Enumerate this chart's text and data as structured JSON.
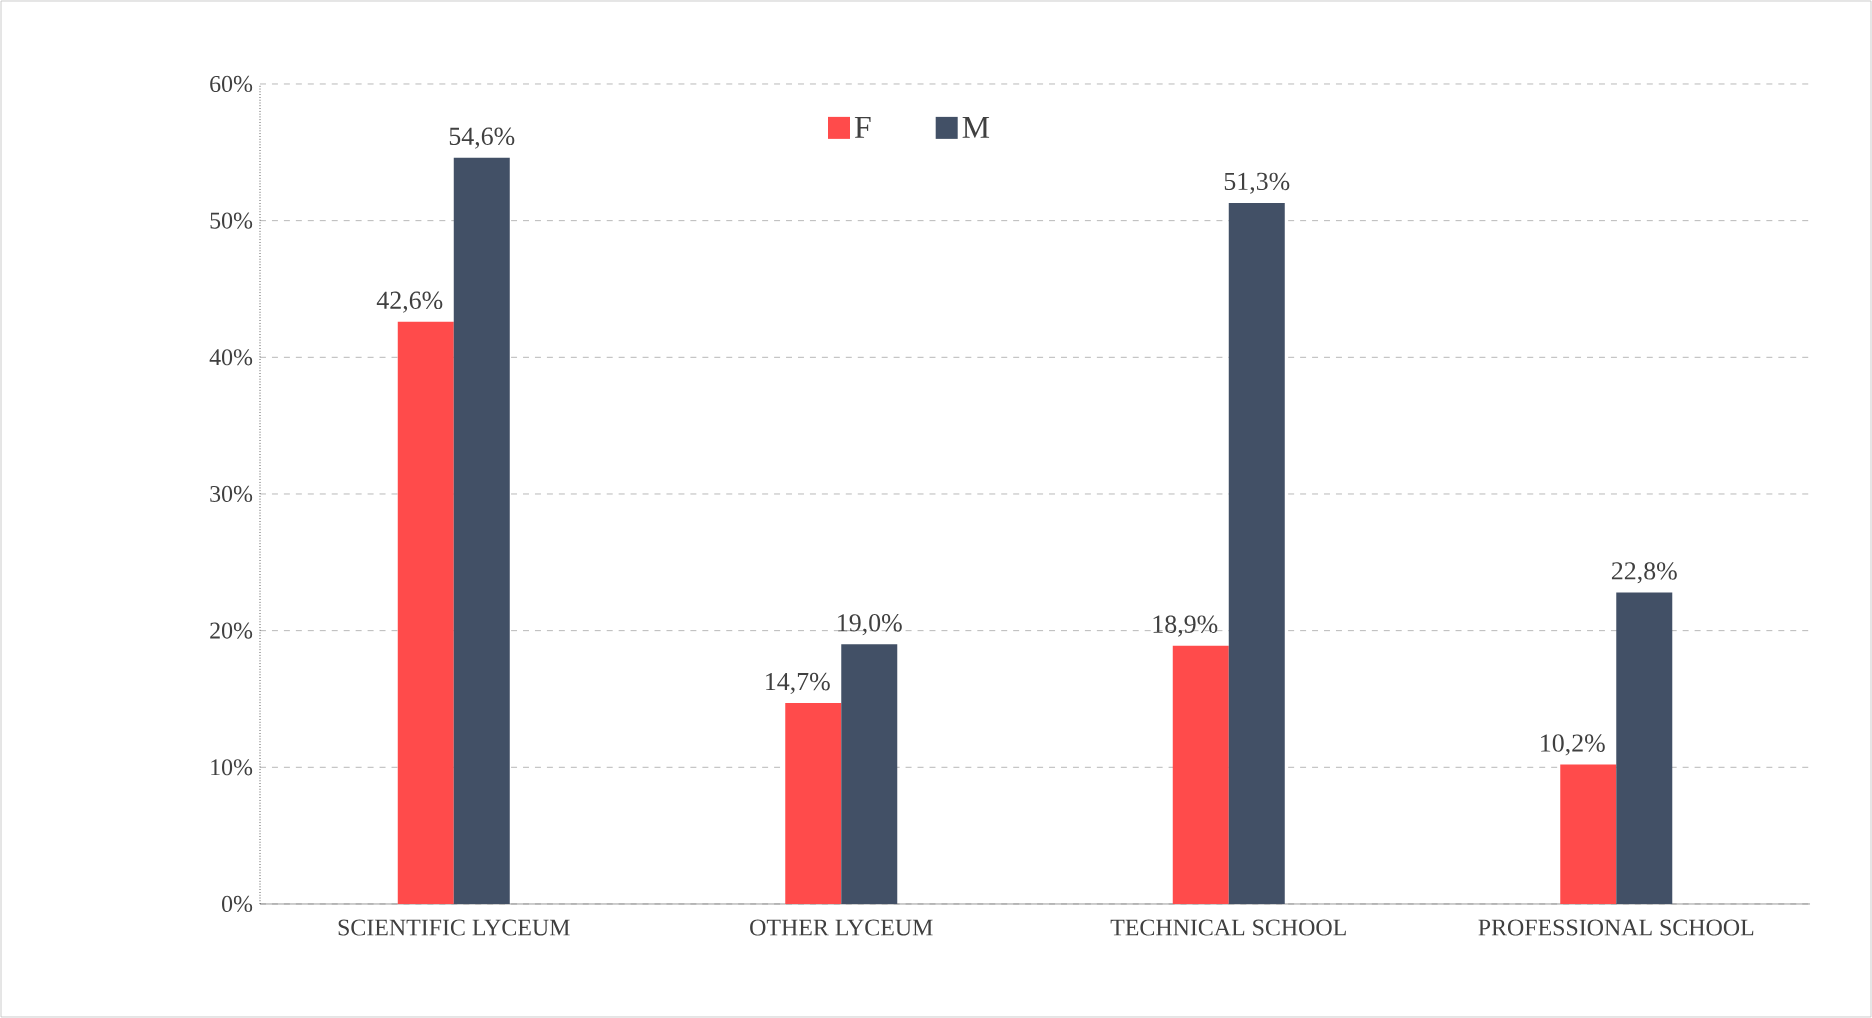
{
  "chart_data": {
    "type": "bar",
    "categories": [
      "SCIENTIFIC LYCEUM",
      "OTHER LYCEUM",
      "TECHNICAL SCHOOL",
      "PROFESSIONAL SCHOOL"
    ],
    "series": [
      {
        "name": "F",
        "color": "#ff4b4b",
        "values": [
          42.6,
          14.7,
          18.9,
          10.2
        ],
        "value_labels": [
          "42,6%",
          "14,7%",
          "18,9%",
          "10,2%"
        ]
      },
      {
        "name": "M",
        "color": "#425066",
        "values": [
          54.6,
          19.0,
          51.3,
          22.8
        ],
        "value_labels": [
          "54,6%",
          "19,0%",
          "51,3%",
          "22,8%"
        ]
      }
    ],
    "ylim": [
      0,
      60
    ],
    "yticks": [
      {
        "value": 0,
        "label": "0%"
      },
      {
        "value": 10,
        "label": "10%"
      },
      {
        "value": 20,
        "label": "20%"
      },
      {
        "value": 30,
        "label": "30%"
      },
      {
        "value": 40,
        "label": "40%"
      },
      {
        "value": 50,
        "label": "50%"
      },
      {
        "value": 60,
        "label": "60%"
      }
    ],
    "grid": "y",
    "legend": "top"
  }
}
